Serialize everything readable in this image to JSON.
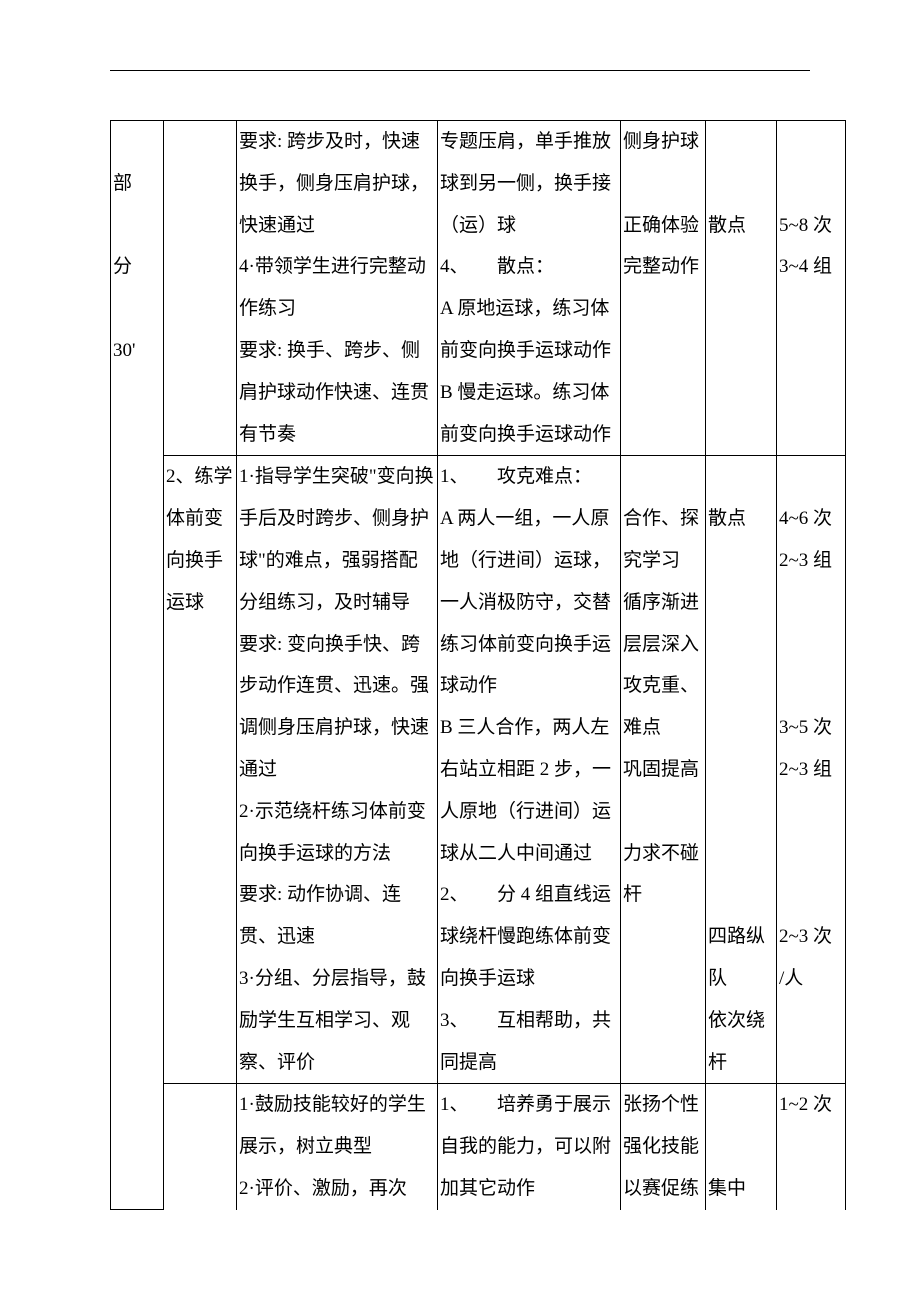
{
  "col1": {
    "r1": "\n部\n\n分\n\n30'"
  },
  "col2": {
    "r2": "2、练学体前变向换手运球"
  },
  "col3": {
    "r1": "要求: 跨步及时，快速换手，侧身压肩护球，快速通过\n4·带领学生进行完整动作练习\n要求: 换手、跨步、侧肩护球动作快速、连贯有节奏",
    "r2": "1·指导学生突破\"变向换手后及时跨步、侧身护球\"的难点，强弱搭配分组练习，及时辅导\n要求: 变向换手快、跨步动作连贯、迅速。强调侧身压肩护球，快速通过\n2·示范绕杆练习体前变向换手运球的方法\n要求: 动作协调、连贯、迅速\n3·分组、分层指导，鼓励学生互相学习、观察、评价",
    "r3": "1·鼓励技能较好的学生展示，树立典型\n2·评价、激励，再次"
  },
  "col4": {
    "r1": "专题压肩，单手推放球到另一侧，换手接（运）球\n4、　　散点：\nA 原地运球，练习体前变向换手运球动作\nB 慢走运球。练习体前变向换手运球动作",
    "r2": "1、　　攻克难点：\nA 两人一组，一人原地（行进间）运球，一人消极防守，交替练习体前变向换手运球动作\nB 三人合作，两人左右站立相距 2 步，一人原地（行进间）运球从二人中间通过\n2、　　分 4 组直线运球绕杆慢跑练体前变向换手运球\n3、　　互相帮助，共同提高",
    "r3": "1、　　培养勇于展示自我的能力，可以附加其它动作"
  },
  "col5": {
    "r1": "侧身护球\n\n正确体验完整动作",
    "r2": "\n合作、探究学习\n循序渐进层层深入\n攻克重、难点\n巩固提高\n\n力求不碰杆",
    "r3": "张扬个性强化技能以赛促练"
  },
  "col6": {
    "r1": "\n\n散点",
    "r2": "\n散点\n\n\n\n\n\n\n\n\n\n四路纵队\n依次绕杆",
    "r3": "\n\n集中"
  },
  "col7": {
    "r1": "\n\n5~8 次\n3~4 组",
    "r2": "\n4~6 次\n2~3 组\n\n\n\n3~5 次\n2~3 组\n\n\n\n2~3 次\n/人",
    "r3": "1~2 次"
  }
}
